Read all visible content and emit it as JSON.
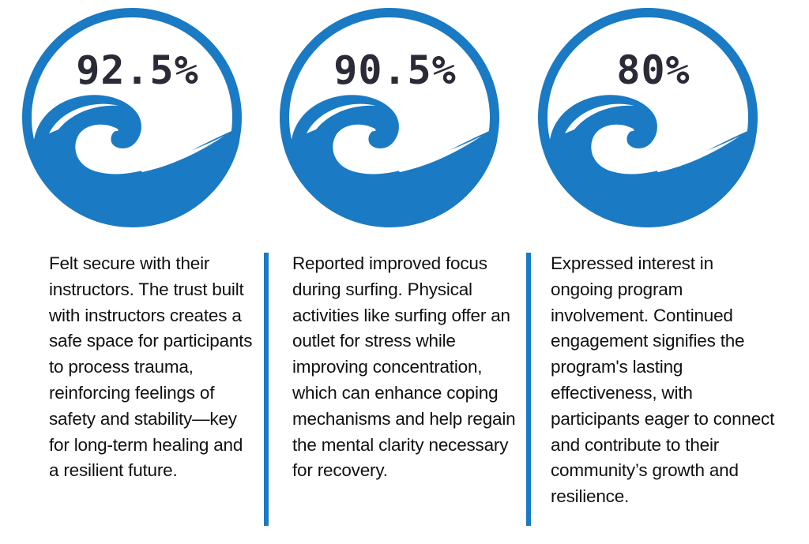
{
  "colors": {
    "accent": "#1a7ac4",
    "text": "#111111",
    "number": "#2b2b38"
  },
  "stats": [
    {
      "percent": "92.5%",
      "icon": "wave-in-circle-icon",
      "description": "Felt secure with their instructors. The trust built with instructors creates a safe space for participants to process trauma, reinforcing feelings of safety and stability—key for long-term healing and a resilient future."
    },
    {
      "percent": "90.5%",
      "icon": "wave-in-circle-icon",
      "description": "Reported improved focus during surfing. Physical activities like surfing offer an outlet for stress while improving concentration, which can enhance coping mechanisms and help regain the mental clarity necessary for recovery."
    },
    {
      "percent": "80%",
      "icon": "wave-in-circle-icon",
      "description": "Expressed interest in ongoing program involvement. Continued engagement signifies the program's lasting effectiveness, with participants eager to connect and contribute to their community’s growth and resilience."
    }
  ]
}
